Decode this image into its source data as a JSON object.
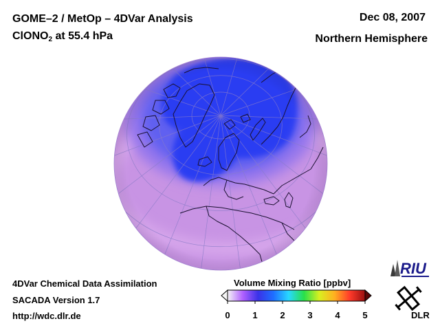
{
  "header": {
    "title_line1": "GOME–2 / MetOp – 4DVar Analysis",
    "species_prefix": "ClONO",
    "species_sub": "2",
    "species_suffix": " at 55.4 hPa",
    "date": "Dec 08, 2007",
    "region": "Northern Hemisphere"
  },
  "footer": {
    "line1": "4DVar Chemical Data Assimilation",
    "line2": "SACADA Version 1.7",
    "line3": "http://wdc.dlr.de"
  },
  "colorbar": {
    "title": "Volume Mixing Ratio [ppbv]",
    "min": 0,
    "max": 5,
    "ticks": [
      "0",
      "1",
      "2",
      "3",
      "4",
      "5"
    ],
    "colors": [
      "#f5f5f5",
      "#b060ff",
      "#3a32e8",
      "#1e6eff",
      "#28d8ff",
      "#28e04a",
      "#d8f020",
      "#ffb020",
      "#ff3a2a",
      "#9a1010"
    ]
  },
  "map": {
    "projection": "orthographic",
    "center_lat": 90,
    "field_colors": {
      "background": "#c894e4",
      "band": "#d8a8ec",
      "low": "#2c3cf2",
      "mid": "#6060f0",
      "edge": "#9878ec"
    }
  },
  "logos": {
    "riu_text": "RIU",
    "dlr_text": "DLR"
  }
}
